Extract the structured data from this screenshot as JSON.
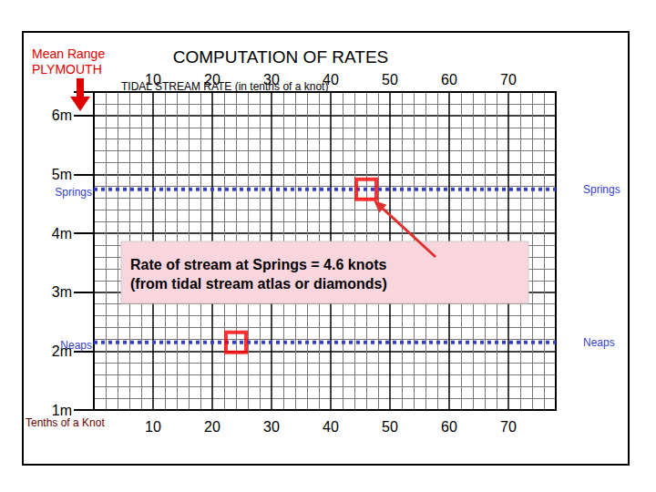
{
  "chart_data": {
    "type": "line",
    "title": "COMPUTATION OF RATES",
    "subtitle": "TIDAL STREAM RATE (in tenths of a knot)",
    "range_label": [
      "Mean Range",
      "PLYMOUTH"
    ],
    "x_label": "Tenths of a Knot",
    "annotation": [
      "Rate of stream at Springs = 4.6 knots",
      "(from tidal stream atlas or diamonds)"
    ],
    "xlim": [
      0,
      78
    ],
    "xticks": [
      10,
      20,
      30,
      40,
      50,
      60,
      70
    ],
    "ylim": [
      1,
      6.4
    ],
    "yticks": [
      {
        "value": 1,
        "label": "1m"
      },
      {
        "value": 2,
        "label": "2m"
      },
      {
        "value": 3,
        "label": "3m"
      },
      {
        "value": 4,
        "label": "4m"
      },
      {
        "value": 5,
        "label": "5m"
      },
      {
        "value": 6,
        "label": "6m"
      }
    ],
    "grid": true,
    "x": [
      0,
      78
    ],
    "series": [
      {
        "name": "Springs",
        "color": "#3340cc",
        "line_style": "dotted",
        "values": [
          4.75,
          4.75
        ]
      },
      {
        "name": "Neaps",
        "color": "#3340cc",
        "line_style": "dotted",
        "values": [
          2.15,
          2.15
        ]
      },
      {
        "type": "scatter",
        "marker": "square",
        "color": "#ff0000",
        "x": [
          46,
          24
        ],
        "values": [
          4.75,
          2.15
        ]
      }
    ]
  }
}
